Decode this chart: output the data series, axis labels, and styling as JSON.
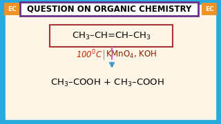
{
  "bg_outer": "#29aadf",
  "bg_inner": "#fdf5e6",
  "title_text": "QUESTION ON ORGANIC CHEMISTRY",
  "title_box_edge": "#6b2c8a",
  "title_bg": "#ffffff",
  "title_fontsize": 8.5,
  "ec_bg": "#f0922a",
  "ec_text": "EC",
  "ec_fontsize": 6.5,
  "reactant_box_color": "#aa3333",
  "condition_color": "#cc2200",
  "condition_right_color": "#8b2000",
  "dashed_line_color": "#cc66cc",
  "arrow_color": "#4499cc",
  "reactant_fontsize": 9.5,
  "condition_fontsize": 8.5,
  "product_fontsize": 9.5,
  "outer_border_color": "#aaaaaa"
}
